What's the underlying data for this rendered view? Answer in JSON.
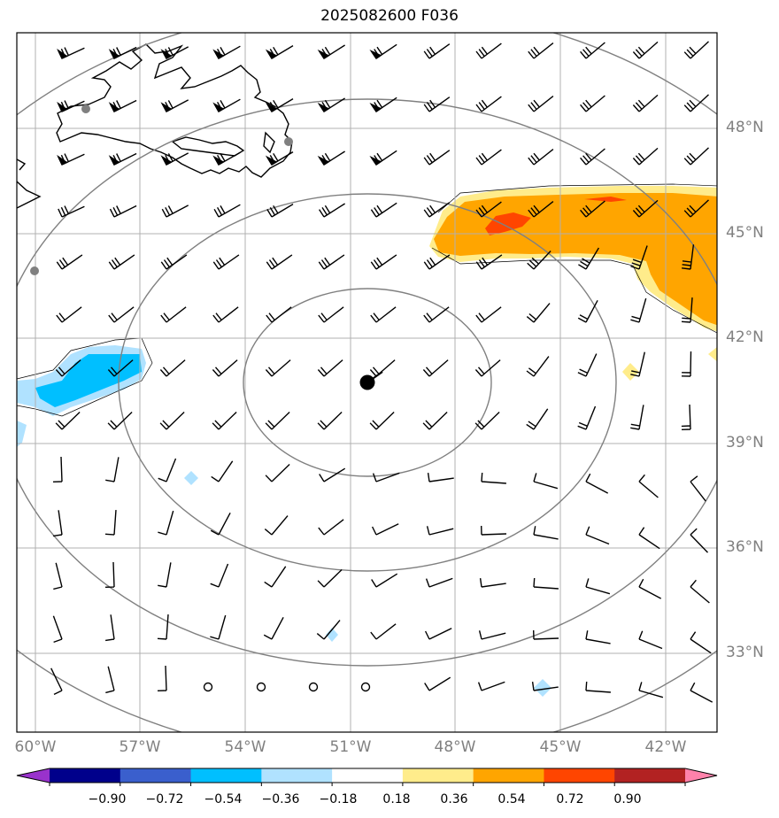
{
  "title": "2025082600 F036",
  "lat_labels": [
    "48°N",
    "45°N",
    "42°N",
    "39°N",
    "36°N",
    "33°N"
  ],
  "lon_labels": [
    "60°W",
    "57°W",
    "54°W",
    "51°W",
    "48°W",
    "45°W",
    "42°W"
  ],
  "colorbar": {
    "ticks": [
      "−0.90",
      "−0.72",
      "−0.54",
      "−0.36",
      "−0.18",
      "0.18",
      "0.36",
      "0.54",
      "0.72",
      "0.90"
    ],
    "colors": [
      "#9932cc",
      "#00008b",
      "#3a5fcd",
      "#00bfff",
      "#b0e2ff",
      "#ffffff",
      "#ffec8b",
      "#ffa500",
      "#ff4500",
      "#b22222",
      "#ff82ab"
    ]
  },
  "center_marker": {
    "lon": -50.5,
    "lat": 40.8
  }
}
